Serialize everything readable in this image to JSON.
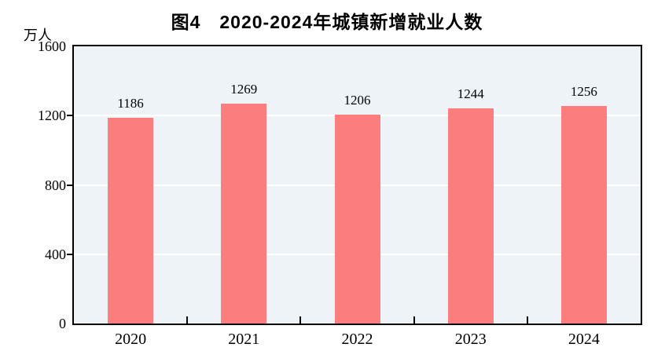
{
  "chart_data": {
    "type": "bar",
    "title": "图4　2020-2024年城镇新增就业人数",
    "unit_label": "万人",
    "categories": [
      "2020",
      "2021",
      "2022",
      "2023",
      "2024"
    ],
    "values": [
      1186,
      1269,
      1206,
      1244,
      1256
    ],
    "xlabel": "",
    "ylabel": "万人",
    "ylim": [
      0,
      1600
    ],
    "yticks": [
      0,
      400,
      800,
      1200,
      1600
    ],
    "grid": "horizontal",
    "gridline_values": [
      400,
      800,
      1200
    ],
    "legend_position": "none",
    "colors": {
      "bar_fill": "#FB7D7D",
      "plot_background": "#EDF3F7",
      "gridline": "#FFFFFF",
      "axis": "#000000",
      "text": "#000000",
      "page_background": "#FFFFFF"
    }
  }
}
